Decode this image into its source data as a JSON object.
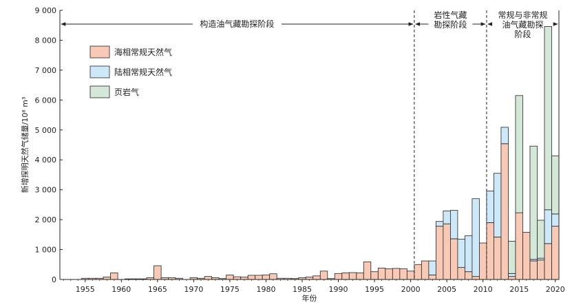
{
  "chart_data": {
    "type": "bar",
    "stacked": true,
    "xlabel": "年份",
    "ylabel": "新增探明天然气储量/10⁸ m³",
    "ylim": [
      0,
      9000
    ],
    "yticks": [
      0,
      1000,
      2000,
      3000,
      4000,
      5000,
      6000,
      7000,
      8000,
      9000
    ],
    "ytick_labels": [
      "0",
      "1 000",
      "2 000",
      "3 000",
      "4 000",
      "5 000",
      "6 000",
      "7 000",
      "8 000",
      "9 000"
    ],
    "xlim": [
      1951.5,
      2020.5
    ],
    "xticks": [
      1955,
      1960,
      1965,
      1970,
      1975,
      1980,
      1985,
      1990,
      1995,
      2000,
      2005,
      2010,
      2015,
      2020
    ],
    "grid": false,
    "legend_position": "top-left",
    "phases": [
      {
        "label": "构造油气藏勘探阶段",
        "start": 1951.5,
        "end": 2000.5
      },
      {
        "label": "岩性气藏\n勘探阶段",
        "start": 2000.5,
        "end": 2010.5
      },
      {
        "label": "常规与非常规\n油气藏勘探\n阶段",
        "start": 2010.5,
        "end": 2020.5
      }
    ],
    "years": [
      1955,
      1956,
      1957,
      1958,
      1959,
      1960,
      1961,
      1962,
      1963,
      1964,
      1965,
      1966,
      1967,
      1968,
      1969,
      1970,
      1971,
      1972,
      1973,
      1974,
      1975,
      1976,
      1977,
      1978,
      1979,
      1980,
      1981,
      1982,
      1983,
      1984,
      1985,
      1986,
      1987,
      1988,
      1989,
      1990,
      1991,
      1992,
      1993,
      1994,
      1995,
      1996,
      1997,
      1998,
      1999,
      2000,
      2001,
      2002,
      2003,
      2004,
      2005,
      2006,
      2007,
      2008,
      2009,
      2010,
      2011,
      2012,
      2013,
      2014,
      2015,
      2016,
      2017,
      2018,
      2019,
      2020
    ],
    "series": [
      {
        "name": "海相常规天然气",
        "color": "#f8c9b4",
        "values": [
          40,
          40,
          40,
          80,
          220,
          0,
          20,
          20,
          20,
          60,
          460,
          60,
          60,
          40,
          0,
          60,
          40,
          100,
          60,
          30,
          150,
          90,
          80,
          140,
          140,
          150,
          190,
          40,
          40,
          30,
          60,
          80,
          120,
          280,
          30,
          200,
          220,
          230,
          220,
          590,
          260,
          380,
          360,
          370,
          360,
          280,
          500,
          620,
          150,
          1780,
          1860,
          1360,
          400,
          260,
          100,
          1220,
          1900,
          1420,
          4540,
          100,
          2230,
          1580,
          620,
          650,
          1200,
          1780
        ]
      },
      {
        "name": "陆相常规天然气",
        "color": "#cde8f8",
        "values": [
          0,
          0,
          0,
          0,
          0,
          0,
          0,
          0,
          0,
          0,
          0,
          0,
          0,
          0,
          0,
          0,
          0,
          0,
          0,
          0,
          0,
          0,
          0,
          0,
          0,
          0,
          0,
          0,
          0,
          0,
          0,
          0,
          0,
          0,
          0,
          0,
          0,
          0,
          0,
          0,
          0,
          0,
          0,
          0,
          0,
          0,
          0,
          0,
          470,
          160,
          430,
          950,
          950,
          1200,
          2600,
          0,
          1060,
          2130,
          550,
          100,
          0,
          0,
          50,
          60,
          1130,
          410
        ]
      },
      {
        "name": "页岩气",
        "color": "#d3e8d6",
        "values": [
          0,
          0,
          0,
          0,
          0,
          0,
          0,
          0,
          0,
          0,
          0,
          0,
          0,
          0,
          0,
          0,
          0,
          0,
          0,
          0,
          0,
          0,
          0,
          0,
          0,
          0,
          0,
          0,
          0,
          0,
          0,
          0,
          0,
          0,
          0,
          0,
          0,
          0,
          0,
          0,
          0,
          0,
          0,
          0,
          0,
          0,
          0,
          0,
          0,
          0,
          0,
          0,
          0,
          0,
          0,
          0,
          0,
          0,
          0,
          1080,
          3920,
          0,
          3790,
          1270,
          6130,
          1940
        ]
      }
    ]
  }
}
